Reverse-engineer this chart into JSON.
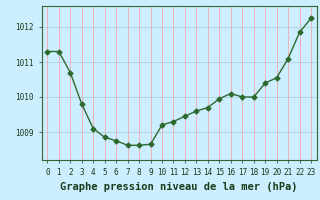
{
  "x": [
    0,
    1,
    2,
    3,
    4,
    5,
    6,
    7,
    8,
    9,
    10,
    11,
    12,
    13,
    14,
    15,
    16,
    17,
    18,
    19,
    20,
    21,
    22,
    23
  ],
  "y": [
    1011.3,
    1011.3,
    1010.7,
    1009.8,
    1009.1,
    1008.85,
    1008.75,
    1008.62,
    1008.62,
    1008.65,
    1009.2,
    1009.3,
    1009.45,
    1009.6,
    1009.7,
    1009.95,
    1010.1,
    1010.0,
    1010.0,
    1010.4,
    1010.55,
    1011.1,
    1011.85,
    1012.25
  ],
  "line_color": "#2d6a2d",
  "marker": "D",
  "marker_size": 2.5,
  "line_width": 1.0,
  "bg_color": "#cceeff",
  "grid_color_x": "#ff9999",
  "grid_color_y": "#aacccc",
  "xlabel": "Graphe pression niveau de la mer (hPa)",
  "xlabel_fontsize": 7.5,
  "xlabel_color": "#1a3a1a",
  "tick_fontsize": 5.5,
  "tick_color": "#1a3a1a",
  "ylim": [
    1008.2,
    1012.6
  ],
  "yticks": [
    1009,
    1010,
    1011,
    1012
  ],
  "xlim": [
    -0.5,
    23.5
  ]
}
